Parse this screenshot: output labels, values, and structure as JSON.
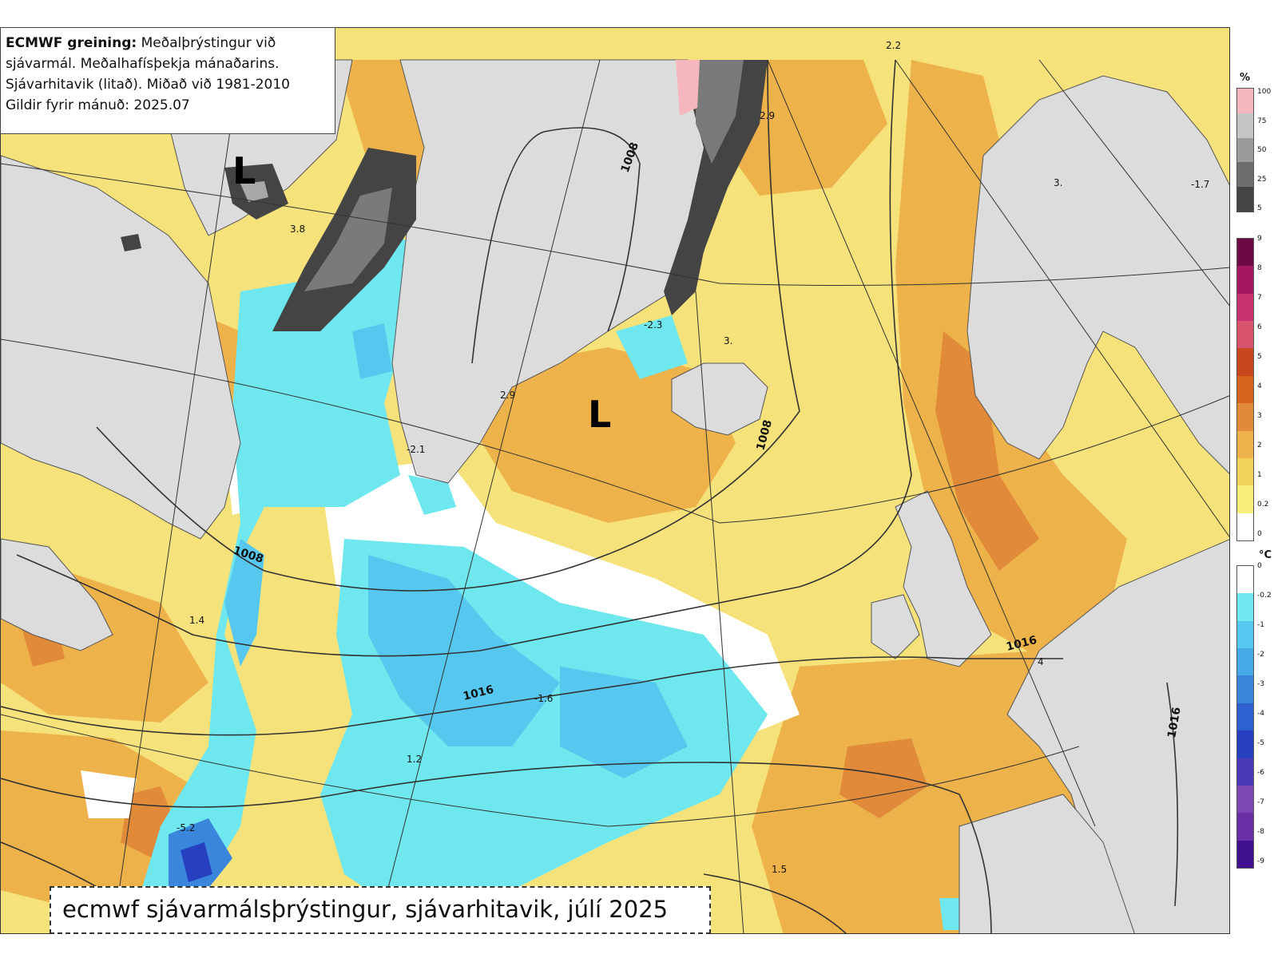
{
  "info": {
    "title_bold": "ECMWF greining:",
    "title_rest": "Meðalþrýstingur við",
    "line2": "sjávarmál. Meðalhafísþekja mánaðarins.",
    "line3": "Sjávarhitavik (litað). Miðað við 1981-2010",
    "line4": "Gildir fyrir mánuð: 2025.07"
  },
  "caption": "ecmwf sjávarmálsþrýstingur, sjávarhitavik, júlí 2025",
  "map_labels": {
    "low1": "L",
    "low2": "L",
    "isobars": [
      "1008",
      "1008",
      "1008",
      "1016",
      "1016",
      "1016"
    ],
    "values": [
      "2.2",
      "2.9",
      "3.8",
      "-2.3",
      "3.",
      "2.9",
      "-2.1",
      "-1.6",
      "1.2",
      "-5.2",
      "1.5",
      "4",
      "-1.7",
      "3.",
      "1.4"
    ]
  },
  "legend_ice": {
    "unit": "%",
    "ticks": [
      "100",
      "75",
      "50",
      "25",
      "5"
    ],
    "colors": [
      "#f5b6bd",
      "#c4c4c4",
      "#9a9a9a",
      "#6e6e6e",
      "#444444"
    ]
  },
  "legend_warm": {
    "ticks": [
      "9",
      "8",
      "7",
      "6",
      "5",
      "4",
      "3",
      "2",
      "1",
      "0.2",
      "0"
    ],
    "colors": [
      "#6b0a45",
      "#a3175f",
      "#c8336f",
      "#d8546d",
      "#c9471d",
      "#d4641e",
      "#e08a3a",
      "#eeb24a",
      "#f3d25a",
      "#f7ef7a",
      "#ffffff"
    ]
  },
  "legend_cool": {
    "unit": "°C",
    "ticks": [
      "0",
      "-0.2",
      "-1",
      "-2",
      "-3",
      "-4",
      "-5",
      "-6",
      "-7",
      "-8",
      "-9"
    ],
    "colors": [
      "#ffffff",
      "#6ee8ee",
      "#56c8ef",
      "#45a9e8",
      "#3b86dd",
      "#2f60cf",
      "#2640bf",
      "#4a3ab8",
      "#7a47b5",
      "#6a2fa4",
      "#3f1090"
    ]
  }
}
